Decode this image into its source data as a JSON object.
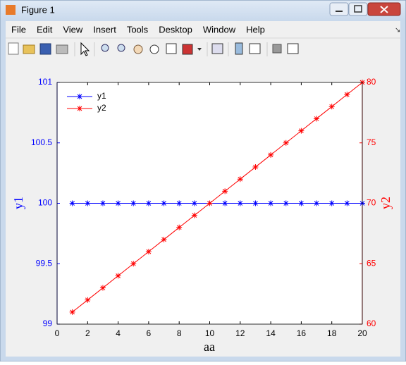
{
  "window": {
    "title": "Figure 1",
    "menus": [
      "File",
      "Edit",
      "View",
      "Insert",
      "Tools",
      "Desktop",
      "Window",
      "Help"
    ]
  },
  "chart_data": {
    "type": "line",
    "x": [
      1,
      2,
      3,
      4,
      5,
      6,
      7,
      8,
      9,
      10,
      11,
      12,
      13,
      14,
      15,
      16,
      17,
      18,
      19,
      20
    ],
    "series": [
      {
        "name": "y1",
        "color": "#0000ff",
        "values": [
          100,
          100,
          100,
          100,
          100,
          100,
          100,
          100,
          100,
          100,
          100,
          100,
          100,
          100,
          100,
          100,
          100,
          100,
          100,
          100
        ]
      },
      {
        "name": "y2",
        "color": "#ff0000",
        "axis": "y2",
        "values": [
          61,
          62,
          63,
          64,
          65,
          66,
          67,
          68,
          69,
          70,
          71,
          72,
          73,
          74,
          75,
          76,
          77,
          78,
          79,
          80
        ]
      }
    ],
    "xlabel": "aa",
    "ylabel": "y1",
    "y2label": "y2",
    "xlim": [
      0,
      20
    ],
    "xticks": [
      0,
      2,
      4,
      6,
      8,
      10,
      12,
      14,
      16,
      18,
      20
    ],
    "ylim": [
      99,
      101
    ],
    "yticks": [
      99,
      99.5,
      100,
      100.5,
      101
    ],
    "y2lim": [
      60,
      80
    ],
    "y2ticks": [
      60,
      65,
      70,
      75,
      80
    ],
    "legend": "northwest",
    "marker": "asterisk"
  }
}
